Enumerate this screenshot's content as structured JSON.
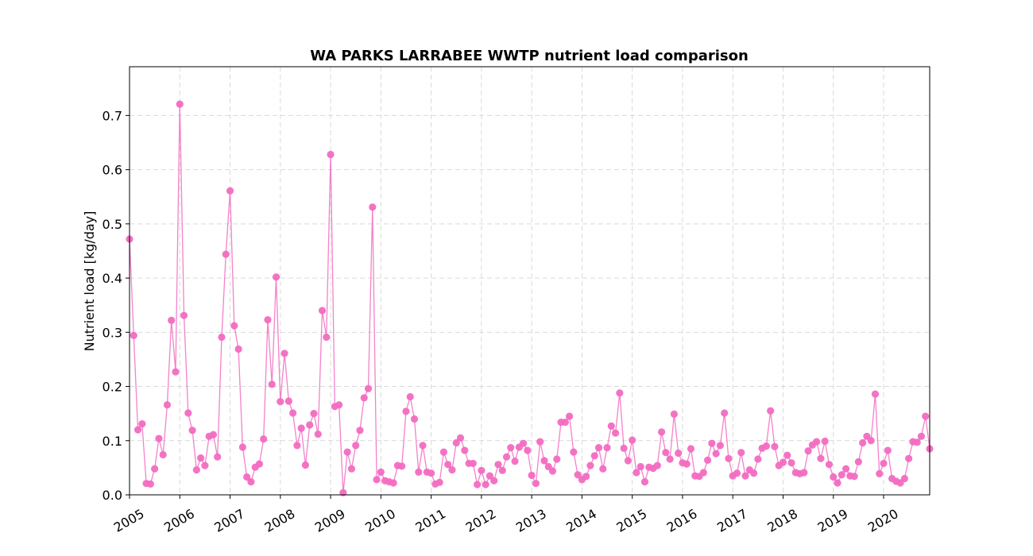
{
  "chart_data": {
    "type": "line",
    "title": "WA PARKS LARRABEE WWTP nutrient load comparison",
    "xlabel": "",
    "ylabel": "Nutrient load [kg/day]",
    "xlim": [
      "2005-01",
      "2020-12"
    ],
    "ylim": [
      0,
      0.79
    ],
    "x_ticks": [
      "2005",
      "2006",
      "2007",
      "2008",
      "2009",
      "2010",
      "2011",
      "2012",
      "2013",
      "2014",
      "2015",
      "2016",
      "2017",
      "2018",
      "2019",
      "2020"
    ],
    "y_ticks": [
      "0.0",
      "0.1",
      "0.2",
      "0.3",
      "0.4",
      "0.5",
      "0.6",
      "0.7"
    ],
    "grid": true,
    "series": [
      {
        "color": "#f26cc1",
        "marker": "circle",
        "x": [
          "2005-01",
          "2005-02",
          "2005-03",
          "2005-04",
          "2005-05",
          "2005-06",
          "2005-07",
          "2005-08",
          "2005-09",
          "2005-10",
          "2005-11",
          "2005-12",
          "2006-01",
          "2006-02",
          "2006-03",
          "2006-04",
          "2006-05",
          "2006-06",
          "2006-07",
          "2006-08",
          "2006-09",
          "2006-10",
          "2006-11",
          "2006-12",
          "2007-01",
          "2007-02",
          "2007-03",
          "2007-04",
          "2007-05",
          "2007-06",
          "2007-07",
          "2007-08",
          "2007-09",
          "2007-10",
          "2007-11",
          "2007-12",
          "2008-01",
          "2008-02",
          "2008-03",
          "2008-04",
          "2008-05",
          "2008-06",
          "2008-07",
          "2008-08",
          "2008-09",
          "2008-10",
          "2008-11",
          "2008-12",
          "2009-01",
          "2009-02",
          "2009-03",
          "2009-04",
          "2009-05",
          "2009-06",
          "2009-07",
          "2009-08",
          "2009-09",
          "2009-10",
          "2009-11",
          "2009-12",
          "2010-01",
          "2010-02",
          "2010-03",
          "2010-04",
          "2010-05",
          "2010-06",
          "2010-07",
          "2010-08",
          "2010-09",
          "2010-10",
          "2010-11",
          "2010-12",
          "2011-01",
          "2011-02",
          "2011-03",
          "2011-04",
          "2011-05",
          "2011-06",
          "2011-07",
          "2011-08",
          "2011-09",
          "2011-10",
          "2011-11",
          "2011-12",
          "2012-01",
          "2012-02",
          "2012-03",
          "2012-04",
          "2012-05",
          "2012-06",
          "2012-07",
          "2012-08",
          "2012-09",
          "2012-10",
          "2012-11",
          "2012-12",
          "2013-01",
          "2013-02",
          "2013-03",
          "2013-04",
          "2013-05",
          "2013-06",
          "2013-07",
          "2013-08",
          "2013-09",
          "2013-10",
          "2013-11",
          "2013-12",
          "2014-01",
          "2014-02",
          "2014-03",
          "2014-04",
          "2014-05",
          "2014-06",
          "2014-07",
          "2014-08",
          "2014-09",
          "2014-10",
          "2014-11",
          "2014-12",
          "2015-01",
          "2015-02",
          "2015-03",
          "2015-04",
          "2015-05",
          "2015-06",
          "2015-07",
          "2015-08",
          "2015-09",
          "2015-10",
          "2015-11",
          "2015-12",
          "2016-01",
          "2016-02",
          "2016-03",
          "2016-04",
          "2016-05",
          "2016-06",
          "2016-07",
          "2016-08",
          "2016-09",
          "2016-10",
          "2016-11",
          "2016-12",
          "2017-01",
          "2017-02",
          "2017-03",
          "2017-04",
          "2017-05",
          "2017-06",
          "2017-07",
          "2017-08",
          "2017-09",
          "2017-10",
          "2017-11",
          "2017-12",
          "2018-01",
          "2018-02",
          "2018-03",
          "2018-04",
          "2018-05",
          "2018-06",
          "2018-07",
          "2018-08",
          "2018-09",
          "2018-10",
          "2018-11",
          "2018-12",
          "2019-01",
          "2019-02",
          "2019-03",
          "2019-04",
          "2019-05",
          "2019-06",
          "2019-07",
          "2019-08",
          "2019-09",
          "2019-10",
          "2019-11",
          "2019-12",
          "2020-01",
          "2020-02",
          "2020-03",
          "2020-04",
          "2020-05",
          "2020-06",
          "2020-07",
          "2020-08",
          "2020-09",
          "2020-10",
          "2020-11",
          "2020-12"
        ],
        "values": [
          0.472,
          0.294,
          0.12,
          0.131,
          0.021,
          0.02,
          0.048,
          0.104,
          0.074,
          0.166,
          0.322,
          0.227,
          0.721,
          0.331,
          0.151,
          0.119,
          0.046,
          0.068,
          0.054,
          0.108,
          0.111,
          0.07,
          0.291,
          0.444,
          0.561,
          0.312,
          0.269,
          0.088,
          0.033,
          0.024,
          0.051,
          0.057,
          0.103,
          0.323,
          0.204,
          0.402,
          0.172,
          0.261,
          0.173,
          0.151,
          0.091,
          0.123,
          0.055,
          0.129,
          0.15,
          0.112,
          0.34,
          0.291,
          0.628,
          0.163,
          0.166,
          0.004,
          0.079,
          0.048,
          0.091,
          0.119,
          0.179,
          0.196,
          0.531,
          0.028,
          0.042,
          0.026,
          0.024,
          0.022,
          0.054,
          0.053,
          0.154,
          0.181,
          0.14,
          0.042,
          0.091,
          0.042,
          0.04,
          0.02,
          0.023,
          0.079,
          0.056,
          0.046,
          0.096,
          0.105,
          0.082,
          0.058,
          0.058,
          0.019,
          0.045,
          0.019,
          0.035,
          0.026,
          0.056,
          0.045,
          0.07,
          0.087,
          0.062,
          0.088,
          0.095,
          0.082,
          0.036,
          0.021,
          0.098,
          0.063,
          0.052,
          0.044,
          0.066,
          0.134,
          0.134,
          0.145,
          0.079,
          0.037,
          0.028,
          0.034,
          0.054,
          0.072,
          0.087,
          0.048,
          0.087,
          0.127,
          0.114,
          0.188,
          0.086,
          0.063,
          0.101,
          0.041,
          0.052,
          0.024,
          0.051,
          0.049,
          0.054,
          0.116,
          0.078,
          0.066,
          0.149,
          0.077,
          0.059,
          0.057,
          0.085,
          0.035,
          0.034,
          0.041,
          0.064,
          0.095,
          0.076,
          0.091,
          0.151,
          0.067,
          0.035,
          0.04,
          0.078,
          0.035,
          0.046,
          0.04,
          0.066,
          0.086,
          0.09,
          0.155,
          0.089,
          0.054,
          0.06,
          0.073,
          0.059,
          0.041,
          0.039,
          0.041,
          0.081,
          0.092,
          0.098,
          0.067,
          0.099,
          0.056,
          0.033,
          0.022,
          0.037,
          0.048,
          0.035,
          0.034,
          0.061,
          0.096,
          0.108,
          0.1,
          0.186,
          0.039,
          0.058,
          0.082,
          0.03,
          0.025,
          0.022,
          0.03,
          0.067,
          0.098,
          0.097,
          0.108,
          0.145,
          0.085
        ]
      }
    ]
  }
}
